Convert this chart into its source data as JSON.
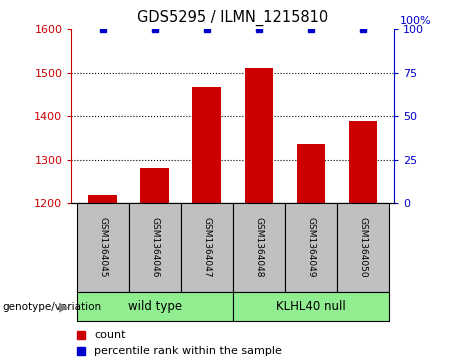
{
  "title": "GDS5295 / ILMN_1215810",
  "samples": [
    "GSM1364045",
    "GSM1364046",
    "GSM1364047",
    "GSM1364048",
    "GSM1364049",
    "GSM1364050"
  ],
  "counts": [
    1220,
    1280,
    1468,
    1510,
    1335,
    1388
  ],
  "percentiles": [
    100,
    100,
    100,
    100,
    100,
    100
  ],
  "ylim_left": [
    1200,
    1600
  ],
  "ylim_right": [
    0,
    100
  ],
  "yticks_left": [
    1200,
    1300,
    1400,
    1500,
    1600
  ],
  "yticks_right": [
    0,
    25,
    50,
    75,
    100
  ],
  "groups": [
    {
      "label": "wild type",
      "indices": [
        0,
        1,
        2
      ],
      "color": "#90EE90"
    },
    {
      "label": "KLHL40 null",
      "indices": [
        3,
        4,
        5
      ],
      "color": "#90EE90"
    }
  ],
  "bar_color": "#CC0000",
  "dot_color": "#0000CC",
  "bar_width": 0.55,
  "sample_box_color": "#C0C0C0",
  "grid_color": "#000000",
  "left_axis_color": "#CC0000",
  "right_axis_color": "#0000CC",
  "legend_count_label": "count",
  "legend_pct_label": "percentile rank within the sample",
  "genotype_label": "genotype/variation"
}
